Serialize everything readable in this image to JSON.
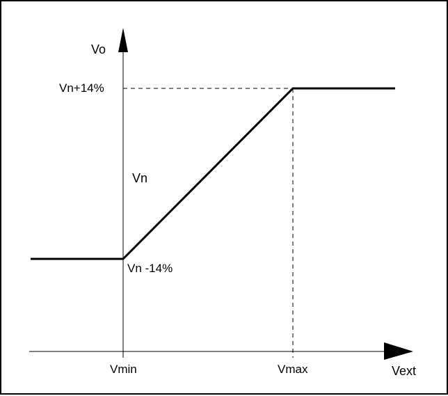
{
  "diagram": {
    "y_axis_label": "Vo",
    "x_axis_label": "Vext",
    "y_labels": {
      "upper": "Vn+14%",
      "nominal": "Vn",
      "lower": "Vn -14%"
    },
    "x_labels": {
      "min": "Vmin",
      "max": "Vmax"
    },
    "colors": {
      "line": "#000000",
      "background": "#ffffff"
    }
  }
}
